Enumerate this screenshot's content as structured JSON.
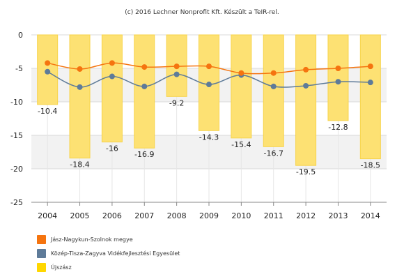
{
  "credit": "(c) 2016 Lechner Nonprofit Kft. Készült a TeIR-rel.",
  "chart_data": {
    "type": "bar",
    "categories": [
      "2004",
      "2005",
      "2006",
      "2007",
      "2008",
      "2009",
      "2010",
      "2011",
      "2012",
      "2013",
      "2014"
    ],
    "ylim": [
      -25,
      0
    ],
    "yticks": [
      0,
      -5,
      -10,
      -15,
      -20,
      -25
    ],
    "grid": true,
    "legend_position": "bottom-left",
    "series": [
      {
        "name": "Jász-Nagykun-Szolnok megye",
        "kind": "line",
        "color": "#f5740f",
        "values": [
          -4.2,
          -5.1,
          -4.2,
          -4.8,
          -4.7,
          -4.7,
          -5.7,
          -5.7,
          -5.2,
          -5.0,
          -4.7
        ]
      },
      {
        "name": "Közép-Tisza-Zagyva Vidékfejlesztési Egyesület",
        "kind": "line",
        "color": "#5e7b99",
        "values": [
          -5.5,
          -7.8,
          -6.2,
          -7.7,
          -5.9,
          -7.4,
          -6.0,
          -7.7,
          -7.6,
          -7.0,
          -7.1
        ]
      },
      {
        "name": "Újszász",
        "kind": "bar",
        "color": "#fde173",
        "values": [
          -10.4,
          -18.4,
          -16,
          -16.9,
          -9.2,
          -14.3,
          -15.4,
          -16.7,
          -19.5,
          -12.8,
          -18.5
        ],
        "labels": [
          "-10.4",
          "-18.4",
          "-16",
          "-16.9",
          "-9.2",
          "-14.3",
          "-15.4",
          "-16.7",
          "-19.5",
          "-12.8",
          "-18.5"
        ]
      }
    ]
  }
}
